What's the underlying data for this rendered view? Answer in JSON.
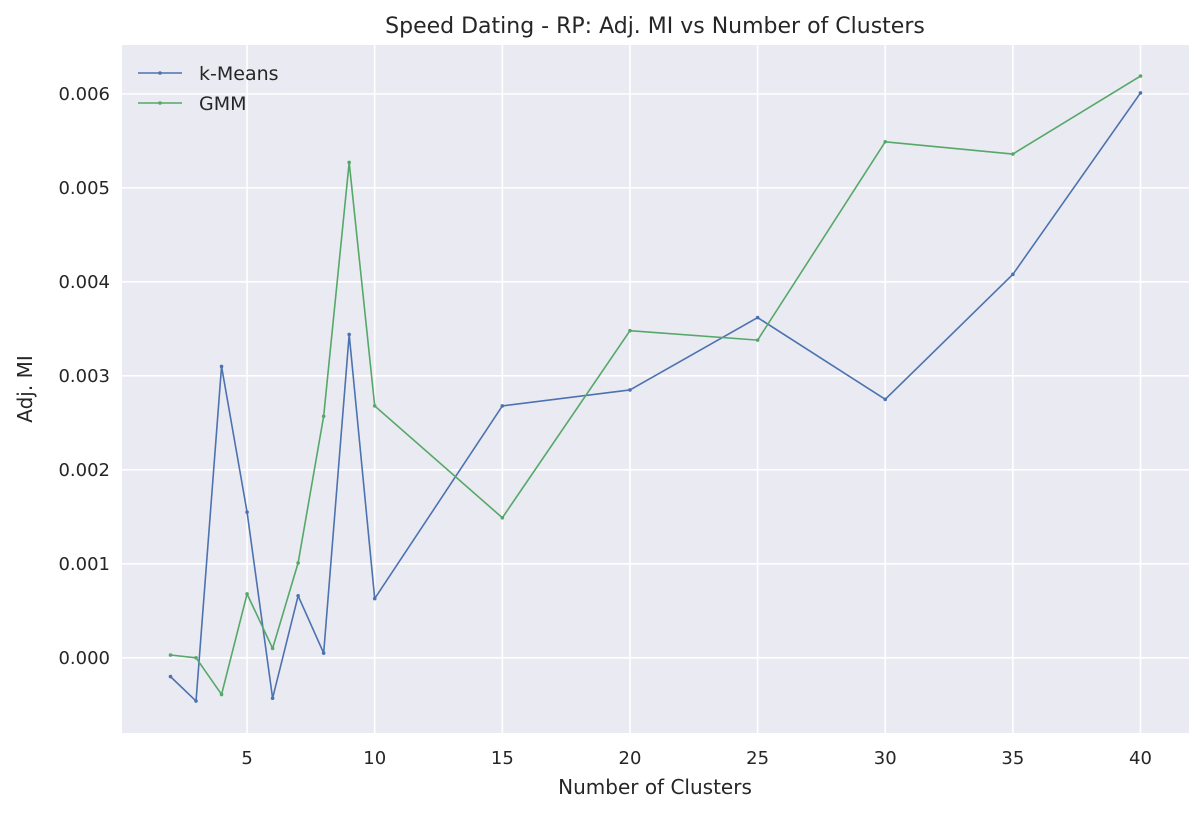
{
  "chart_data": {
    "type": "line",
    "title": "Speed Dating - RP: Adj. MI vs Number of Clusters",
    "xlabel": "Number of Clusters",
    "ylabel": "Adj. MI",
    "xlim": [
      0.1,
      41.9
    ],
    "ylim": [
      -0.0008,
      0.00652
    ],
    "x_ticks": [
      5,
      10,
      15,
      20,
      25,
      30,
      35,
      40
    ],
    "x_tick_labels": [
      "5",
      "10",
      "15",
      "20",
      "25",
      "30",
      "35",
      "40"
    ],
    "y_ticks": [
      0.0,
      0.001,
      0.002,
      0.003,
      0.004,
      0.005,
      0.006
    ],
    "y_tick_labels": [
      "0.000",
      "0.001",
      "0.002",
      "0.003",
      "0.004",
      "0.005",
      "0.006"
    ],
    "grid": true,
    "legend_position": "top-left",
    "x": [
      2,
      3,
      4,
      5,
      6,
      7,
      8,
      9,
      10,
      15,
      20,
      25,
      30,
      35,
      40
    ],
    "series": [
      {
        "name": "k-Means",
        "color": "#4c72b0",
        "values": [
          -0.0002,
          -0.00046,
          0.0031,
          0.00155,
          -0.00043,
          0.00066,
          5e-05,
          0.00344,
          0.00063,
          0.00268,
          0.00285,
          0.00362,
          0.00275,
          0.00408,
          0.00601
        ]
      },
      {
        "name": "GMM",
        "color": "#55a868",
        "values": [
          3e-05,
          0.0,
          -0.00039,
          0.00068,
          0.0001,
          0.00101,
          0.00257,
          0.00527,
          0.00268,
          0.00149,
          0.00348,
          0.00338,
          0.00549,
          0.00536,
          0.00619
        ]
      }
    ]
  },
  "style": {
    "background": "#ffffff",
    "plot_background": "#eaeaf2",
    "grid_color": "#ffffff"
  }
}
